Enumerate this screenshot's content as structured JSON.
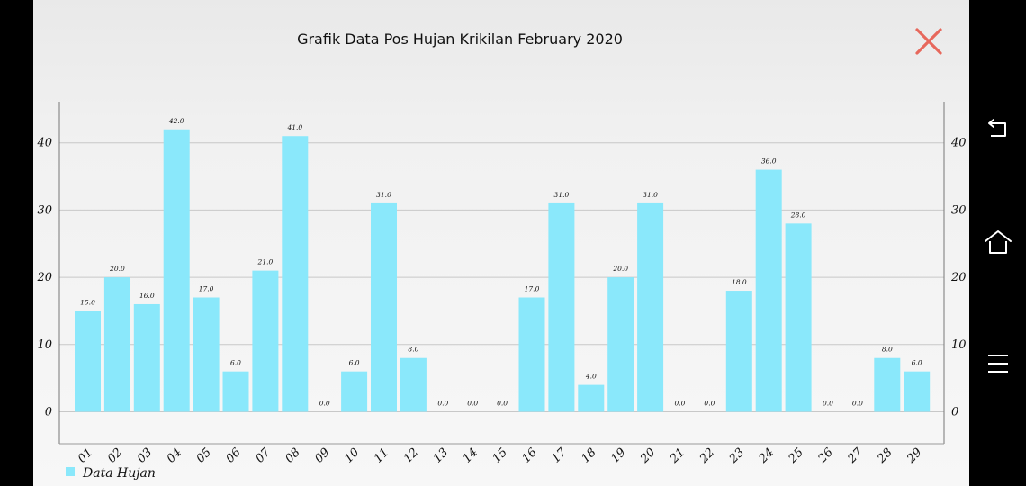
{
  "title": "Grafik Data Pos Hujan Krikilan February 2020",
  "icons": {
    "close": "close-icon",
    "back": "back-icon",
    "home": "home-icon",
    "menu": "menu-icon"
  },
  "colors": {
    "bar": "#8ae8fb",
    "close": "#e7685c",
    "grid": "#c8c8c8",
    "nav_icon": "#ffffff"
  },
  "chart_data": {
    "type": "bar",
    "categories": [
      "01",
      "02",
      "03",
      "04",
      "05",
      "06",
      "07",
      "08",
      "09",
      "10",
      "11",
      "12",
      "13",
      "14",
      "15",
      "16",
      "17",
      "18",
      "19",
      "20",
      "21",
      "22",
      "23",
      "24",
      "25",
      "26",
      "27",
      "28",
      "29"
    ],
    "series": [
      {
        "name": "Data Hujan",
        "values": [
          15,
          20,
          16,
          42,
          17,
          6,
          21,
          41,
          0,
          6,
          31,
          8,
          0,
          0,
          0,
          17,
          31,
          4,
          20,
          31,
          0,
          0,
          18,
          36,
          28,
          0,
          0,
          8,
          6
        ],
        "labels": [
          "15.0",
          "20.0",
          "16.0",
          "42.0",
          "17.0",
          "6.0",
          "21.0",
          "41.0",
          "0.0",
          "6.0",
          "31.0",
          "8.0",
          "0.0",
          "0.0",
          "0.0",
          "17.0",
          "31.0",
          "4.0",
          "20.0",
          "31.0",
          "0.0",
          "0.0",
          "18.0",
          "36.0",
          "28.0",
          "0.0",
          "0.0",
          "8.0",
          "6.0"
        ]
      }
    ],
    "yticks": [
      "0",
      "10",
      "20",
      "30",
      "40"
    ],
    "ytick_values": [
      0,
      10,
      20,
      30,
      40
    ],
    "ylim": [
      -5,
      46
    ],
    "axes": "left and right",
    "grid": true,
    "legend_position": "bottom-left"
  }
}
